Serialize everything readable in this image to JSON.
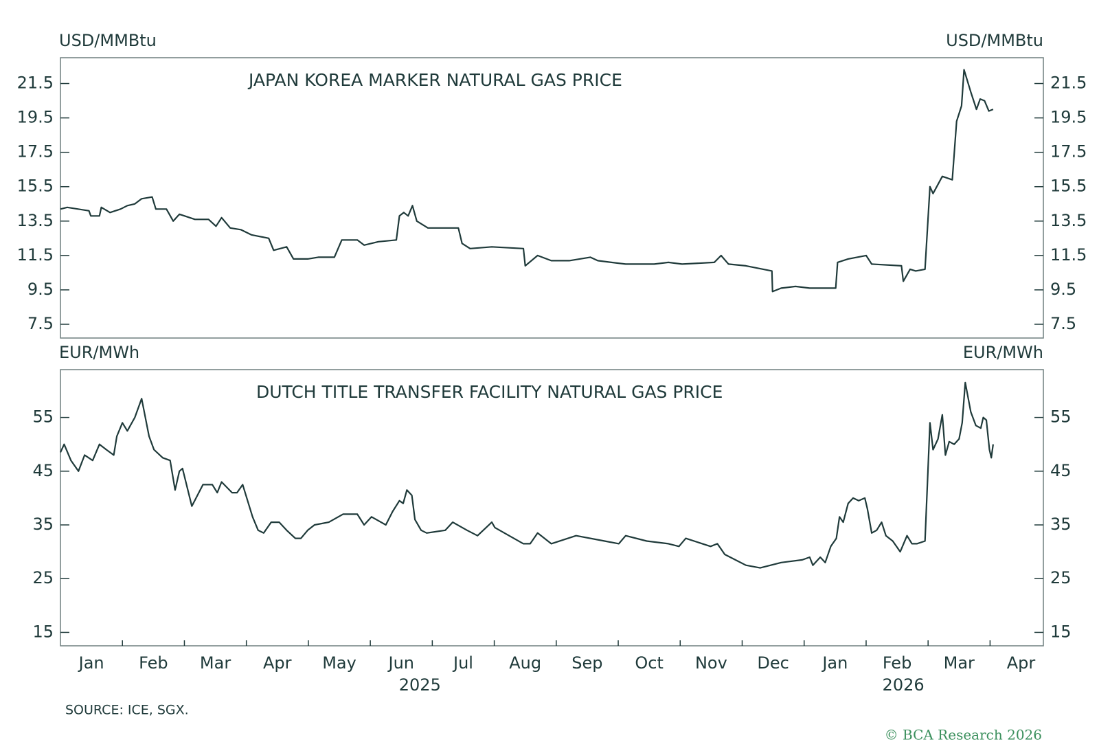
{
  "chart_data": [
    {
      "type": "line",
      "title": "JAPAN KOREA MARKER NATURAL GAS PRICE",
      "ylabel": "USD/MMBtu",
      "y2label": "USD/MMBtu",
      "color": "#1f3a3a",
      "xlim": [
        0,
        15.86
      ],
      "ylim": [
        6.7,
        23.0
      ],
      "yticks": [
        7.5,
        9.5,
        11.5,
        13.5,
        15.5,
        17.5,
        19.5,
        21.5
      ],
      "y2lim": [
        6.7,
        23.0
      ],
      "y2ticks": [
        7.5,
        9.5,
        11.5,
        13.5,
        15.5,
        17.5,
        19.5,
        21.5
      ],
      "x": [
        0,
        0.11,
        0.46,
        0.49,
        0.63,
        0.66,
        0.8,
        0.97,
        1.08,
        1.2,
        1.31,
        1.48,
        1.54,
        1.71,
        1.82,
        1.92,
        2.17,
        2.39,
        2.51,
        2.6,
        2.74,
        2.91,
        3.08,
        3.36,
        3.44,
        3.65,
        3.76,
        3.99,
        4.16,
        4.42,
        4.54,
        4.79,
        4.9,
        5.13,
        5.42,
        5.47,
        5.54,
        5.61,
        5.68,
        5.75,
        5.93,
        6.16,
        6.42,
        6.48,
        6.61,
        6.96,
        7.47,
        7.5,
        7.7,
        7.92,
        8.21,
        8.55,
        8.67,
        8.89,
        9.12,
        9.58,
        9.81,
        10.03,
        10.55,
        10.66,
        10.78,
        11.06,
        11.48,
        11.49,
        11.63,
        11.86,
        12.09,
        12.51,
        12.54,
        12.71,
        13.0,
        13.09,
        13.57,
        13.6,
        13.71,
        13.8,
        13.95,
        14.03,
        14.08,
        14.23,
        14.39,
        14.46,
        14.54,
        14.58,
        14.69,
        14.78,
        14.84,
        14.91,
        14.98,
        15.05
      ],
      "values": [
        14.2,
        14.3,
        14.1,
        13.8,
        13.8,
        14.3,
        14.0,
        14.2,
        14.4,
        14.5,
        14.8,
        14.9,
        14.2,
        14.2,
        13.5,
        13.9,
        13.6,
        13.6,
        13.2,
        13.7,
        13.1,
        13.0,
        12.7,
        12.5,
        11.8,
        12.0,
        11.3,
        11.3,
        11.4,
        11.4,
        12.4,
        12.4,
        12.1,
        12.3,
        12.4,
        13.8,
        14.0,
        13.8,
        14.4,
        13.5,
        13.1,
        13.1,
        13.1,
        12.2,
        11.9,
        12.0,
        11.9,
        10.9,
        11.5,
        11.2,
        11.2,
        11.4,
        11.2,
        11.1,
        11.0,
        11.0,
        11.1,
        11.0,
        11.1,
        11.5,
        11.0,
        10.9,
        10.6,
        9.4,
        9.6,
        9.7,
        9.6,
        9.6,
        11.1,
        11.3,
        11.5,
        11.0,
        10.9,
        10.0,
        10.7,
        10.6,
        10.7,
        15.5,
        15.1,
        16.1,
        15.9,
        19.3,
        20.2,
        22.3,
        21.0,
        20.0,
        20.6,
        20.5,
        19.9,
        20.0
      ]
    },
    {
      "type": "line",
      "title": "DUTCH TITLE TRANSFER FACILITY NATURAL GAS PRICE",
      "ylabel": "EUR/MWh",
      "y2label": "EUR/MWh",
      "color": "#1f3a3a",
      "xlim": [
        0,
        15.86
      ],
      "ylim": [
        12.5,
        63.9
      ],
      "yticks": [
        15,
        25,
        35,
        45,
        55
      ],
      "y2lim": [
        12.5,
        63.9
      ],
      "y2ticks": [
        15,
        25,
        35,
        45,
        55
      ],
      "xticks": [
        {
          "value": 0.5,
          "label": "Jan"
        },
        {
          "value": 1.5,
          "label": "Feb"
        },
        {
          "value": 2.5,
          "label": "Mar"
        },
        {
          "value": 3.5,
          "label": "Apr"
        },
        {
          "value": 4.5,
          "label": "May"
        },
        {
          "value": 5.5,
          "label": "Jun"
        },
        {
          "value": 6.5,
          "label": "Jul"
        },
        {
          "value": 7.5,
          "label": "Aug"
        },
        {
          "value": 8.5,
          "label": "Sep"
        },
        {
          "value": 9.5,
          "label": "Oct"
        },
        {
          "value": 10.5,
          "label": "Nov"
        },
        {
          "value": 11.5,
          "label": "Dec"
        },
        {
          "value": 12.5,
          "label": "Jan"
        },
        {
          "value": 13.5,
          "label": "Feb"
        },
        {
          "value": 14.5,
          "label": "Mar"
        },
        {
          "value": 15.5,
          "label": "Apr"
        }
      ],
      "x_tick_marks": [
        1,
        2,
        3,
        4,
        5,
        6,
        7,
        8,
        9,
        10,
        11,
        12,
        13,
        14,
        15
      ],
      "year_labels": [
        {
          "value": 5.8,
          "label": "2025"
        },
        {
          "value": 13.6,
          "label": "2026"
        }
      ],
      "x": [
        0,
        0.06,
        0.17,
        0.29,
        0.39,
        0.52,
        0.63,
        0.74,
        0.86,
        0.91,
        1.0,
        1.08,
        1.2,
        1.31,
        1.43,
        1.51,
        1.65,
        1.77,
        1.85,
        1.92,
        1.97,
        2.12,
        2.3,
        2.45,
        2.53,
        2.6,
        2.77,
        2.85,
        2.94,
        3.1,
        3.19,
        3.28,
        3.4,
        3.53,
        3.65,
        3.79,
        3.88,
        3.99,
        4.1,
        4.33,
        4.56,
        4.79,
        4.9,
        5.02,
        5.25,
        5.36,
        5.47,
        5.53,
        5.59,
        5.67,
        5.72,
        5.82,
        5.91,
        6.21,
        6.33,
        6.56,
        6.73,
        6.96,
        7.01,
        7.24,
        7.47,
        7.58,
        7.7,
        7.92,
        8.32,
        8.78,
        9.01,
        9.12,
        9.46,
        9.81,
        9.98,
        10.09,
        10.49,
        10.6,
        10.72,
        10.89,
        11.06,
        11.29,
        11.46,
        11.63,
        11.97,
        12.09,
        12.14,
        12.26,
        12.34,
        12.43,
        12.52,
        12.57,
        12.63,
        12.71,
        12.79,
        12.88,
        12.98,
        13.02,
        13.09,
        13.17,
        13.25,
        13.32,
        13.43,
        13.55,
        13.66,
        13.74,
        13.82,
        13.95,
        14.03,
        14.08,
        14.16,
        14.23,
        14.28,
        14.34,
        14.42,
        14.5,
        14.55,
        14.6,
        14.69,
        14.77,
        14.85,
        14.89,
        14.94,
        14.99,
        15.02,
        15.05
      ],
      "values": [
        48.5,
        50,
        47,
        45,
        48,
        47,
        50,
        49,
        48,
        51.5,
        54,
        52.5,
        55,
        58.5,
        51.5,
        49,
        47.5,
        47,
        41.5,
        45,
        45.5,
        38.5,
        42.5,
        42.5,
        41,
        43,
        41,
        41,
        42.5,
        36.5,
        34,
        33.5,
        35.5,
        35.5,
        34,
        32.5,
        32.5,
        34,
        35,
        35.5,
        37,
        37,
        35,
        36.5,
        35,
        37.5,
        39.5,
        39,
        41.5,
        40.5,
        36,
        34,
        33.5,
        34,
        35.5,
        34,
        33,
        35.5,
        34.5,
        33,
        31.5,
        31.5,
        33.5,
        31.5,
        33,
        32,
        31.5,
        33,
        32,
        31.5,
        31,
        32.5,
        31,
        31.5,
        29.5,
        28.5,
        27.5,
        27,
        27.5,
        28,
        28.5,
        29,
        27.5,
        29,
        28,
        31,
        32.5,
        36.5,
        35.5,
        39,
        40,
        39.5,
        40,
        38,
        33.5,
        34,
        35.5,
        33,
        32,
        30,
        33,
        31.5,
        31.5,
        32,
        54,
        49,
        51,
        55.5,
        48,
        50.5,
        50,
        51,
        54,
        61.5,
        56,
        53.5,
        53,
        55,
        54.5,
        49,
        47.5,
        50
      ]
    }
  ],
  "source": "SOURCE: ICE, SGX.",
  "credit": "© BCA Research 2026"
}
